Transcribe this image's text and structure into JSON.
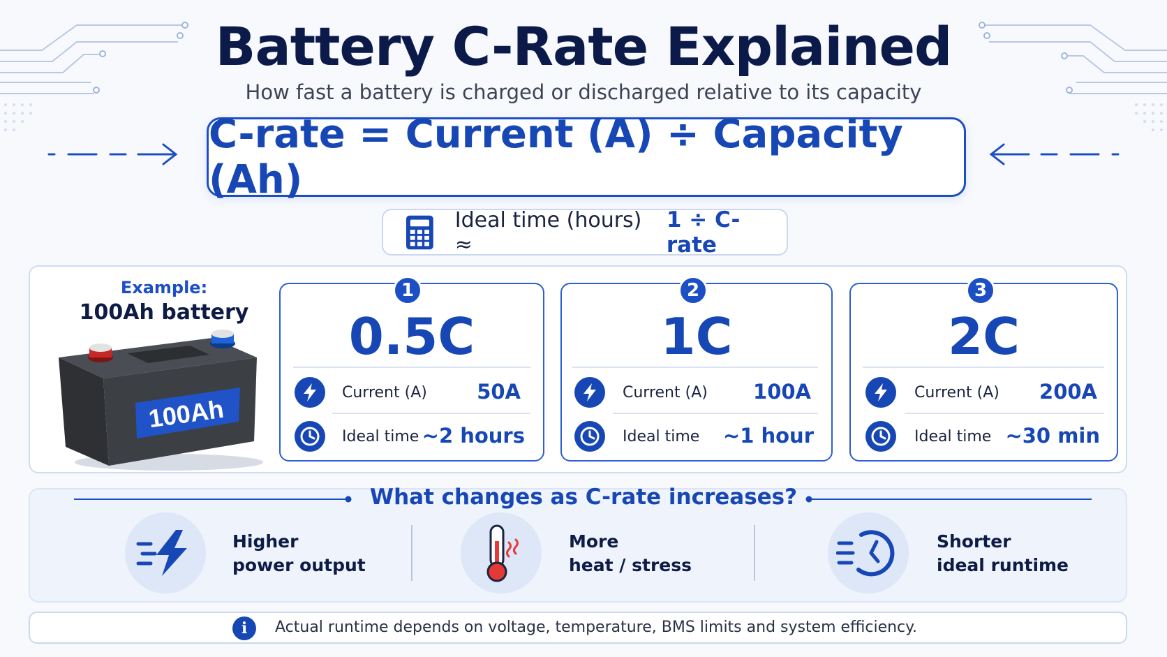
{
  "header": {
    "title": "Battery C-Rate Explained",
    "subtitle": "How fast a battery is charged or discharged relative to its capacity"
  },
  "formula": {
    "main": "C-rate = Current (A) ÷ Capacity (Ah)",
    "secondary_prefix": "Ideal time (hours) ≈",
    "secondary_highlight": "1 ÷ C-rate",
    "icon": "calculator-icon"
  },
  "example": {
    "label": "Example:",
    "title": "100Ah battery",
    "battery_label": "100Ah"
  },
  "cards": [
    {
      "badge": "1",
      "rate": "0.5C",
      "current_label": "Current (A)",
      "current_value": "50A",
      "time_label": "Ideal time",
      "time_value": "~2 hours"
    },
    {
      "badge": "2",
      "rate": "1C",
      "current_label": "Current (A)",
      "current_value": "100A",
      "time_label": "Ideal time",
      "time_value": "~1 hour"
    },
    {
      "badge": "3",
      "rate": "2C",
      "current_label": "Current (A)",
      "current_value": "200A",
      "time_label": "Ideal time",
      "time_value": "~30 min"
    }
  ],
  "changes": {
    "title": "What changes as C-rate increases?",
    "items": [
      {
        "line1": "Higher",
        "line2": "power output",
        "icon": "lightning-icon"
      },
      {
        "line1": "More",
        "line2": "heat / stress",
        "icon": "thermometer-icon"
      },
      {
        "line1": "Shorter",
        "line2": "ideal runtime",
        "icon": "fast-clock-icon"
      }
    ]
  },
  "note": {
    "text": "Actual runtime depends on voltage, temperature, BMS limits and system efficiency.",
    "icon": "info-icon"
  },
  "colors": {
    "primary": "#1747b5",
    "dark": "#0c1a4a",
    "heat": "#e53935"
  }
}
